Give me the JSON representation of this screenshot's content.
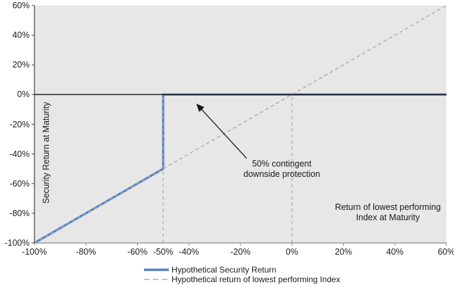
{
  "chart_data": {
    "type": "line",
    "title": "",
    "x_axis": {
      "label": "Return of lowest performing Index at Maturity",
      "label_lines": [
        "Return of lowest performing",
        "Index at Maturity"
      ],
      "min": -100,
      "max": 60,
      "ticks": [
        {
          "value": -100,
          "label": "-100%",
          "tick": true
        },
        {
          "value": -80,
          "label": "-80%",
          "tick": true
        },
        {
          "value": -60,
          "label": "-60%",
          "tick": true
        },
        {
          "value": -50,
          "label": "-50%",
          "tick": false
        },
        {
          "value": -40,
          "label": "-40%",
          "tick": true
        },
        {
          "value": -20,
          "label": "-20%",
          "tick": true
        },
        {
          "value": 0,
          "label": "0%",
          "tick": true
        },
        {
          "value": 20,
          "label": "20%",
          "tick": true
        },
        {
          "value": 40,
          "label": "40%",
          "tick": true
        },
        {
          "value": 60,
          "label": "60%",
          "tick": true
        }
      ]
    },
    "y_axis": {
      "label": "Security Return at Maturity",
      "min": -100,
      "max": 60,
      "ticks": [
        {
          "value": 60,
          "label": "60%"
        },
        {
          "value": 40,
          "label": "40%"
        },
        {
          "value": 20,
          "label": "20%"
        },
        {
          "value": 0,
          "label": "0%"
        },
        {
          "value": -20,
          "label": "-20%"
        },
        {
          "value": -40,
          "label": "-40%"
        },
        {
          "value": -60,
          "label": "-60%"
        },
        {
          "value": -80,
          "label": "-80%"
        },
        {
          "value": -100,
          "label": "-100%"
        }
      ]
    },
    "series": [
      {
        "name": "Hypothetical Security Return",
        "style": "solid",
        "color": "#5581C6",
        "width": 3.2,
        "points": [
          [
            -100,
            -100
          ],
          [
            -50,
            -50
          ],
          [
            -50,
            0
          ],
          [
            60,
            0
          ]
        ]
      },
      {
        "name": "Hypothetical return of lowest performing Index",
        "style": "dashed",
        "color": "#ABABAB",
        "width": 1.4,
        "points": [
          [
            -100,
            -100
          ],
          [
            60,
            60
          ]
        ]
      }
    ],
    "reference_lines": [
      {
        "x": -50,
        "y_from": -100,
        "y_to": 0,
        "style": "dashed",
        "color": "#ABABAB"
      },
      {
        "x": 0,
        "y_from": -100,
        "y_to": 0,
        "style": "dashed",
        "color": "#ABABAB"
      }
    ],
    "zero_line_y": 0,
    "annotation": {
      "lines": [
        "50% contingent",
        "downside protection"
      ],
      "arrow": {
        "from": [
          -17.6,
          -43
        ],
        "to": [
          -36.9,
          -6.6
        ]
      }
    },
    "grid": "off",
    "legend_position": "bottom"
  },
  "legend": {
    "items": [
      {
        "label": "Hypothetical Security Return",
        "style": "solid-blue"
      },
      {
        "label": "Hypothetical return of lowest performing Index",
        "style": "dashed-gray"
      }
    ]
  },
  "colors": {
    "plot_background": "#E7E7E7",
    "page_background": "#FFFFFF",
    "series_blue": "#5581C6",
    "dashed_gray": "#ABABAB",
    "zero_line": "#1F1F1F",
    "y_axis_line": "#404040",
    "x_axis_line": "#8C8C8C",
    "text": "#1A1A1A",
    "arrow": "#1A1A1A"
  }
}
